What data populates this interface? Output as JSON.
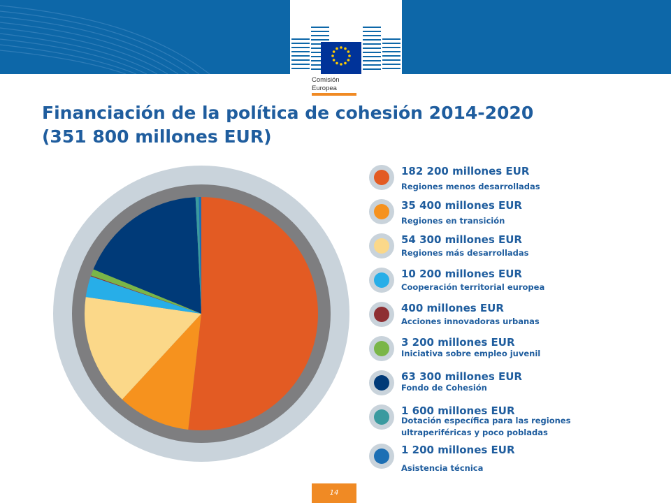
{
  "header": {
    "logo_line1": "Comisión",
    "logo_line2": "Europea"
  },
  "title_line1": "Financiación de la política de cohesión 2014-2020",
  "title_line2": "(351 800 millones EUR)",
  "page_number": "14",
  "chart_data": {
    "type": "pie",
    "unit": "millones EUR",
    "labels": [
      "Regiones menos desarrolladas",
      "Regiones en transición",
      "Regiones más desarrolladas",
      "Cooperación territorial europea",
      "Acciones innovadoras urbanas",
      "Iniciativa sobre empleo juvenil",
      "Fondo de Cohesión",
      "Dotación específica para las regiones ultraperiféricas y poco pobladas",
      "Asistencia técnica"
    ],
    "values": [
      182200,
      35400,
      54300,
      10200,
      400,
      3200,
      63300,
      1600,
      1200
    ],
    "colors": [
      "#e35b23",
      "#f6921e",
      "#fbd889",
      "#27aee8",
      "#8e2f33",
      "#7ab648",
      "#003a78",
      "#3a9a9f",
      "#1c6fb4"
    ],
    "legend": [
      {
        "amount": "182 200 millones EUR",
        "desc": "Regiones menos desarrolladas"
      },
      {
        "amount": "35 400 millones EUR",
        "desc": "Regiones en transición"
      },
      {
        "amount": "54 300 millones EUR",
        "desc": "Regiones más desarrolladas"
      },
      {
        "amount": "10 200 millones EUR",
        "desc": "Cooperación territorial europea"
      },
      {
        "amount": "400 millones EUR",
        "desc": "Acciones innovadoras urbanas"
      },
      {
        "amount": "3 200 millones EUR",
        "desc": "Iniciativa sobre empleo juvenil"
      },
      {
        "amount": "63 300 millones EUR",
        "desc": "Fondo de Cohesión"
      },
      {
        "amount": "1 600 millones EUR",
        "desc": "Dotación específica para las regiones",
        "desc2": "ultraperiféricas y poco pobladas"
      },
      {
        "amount": "1 200 millones EUR",
        "desc": "Asistencia técnica"
      }
    ],
    "legend_placement": "right"
  }
}
